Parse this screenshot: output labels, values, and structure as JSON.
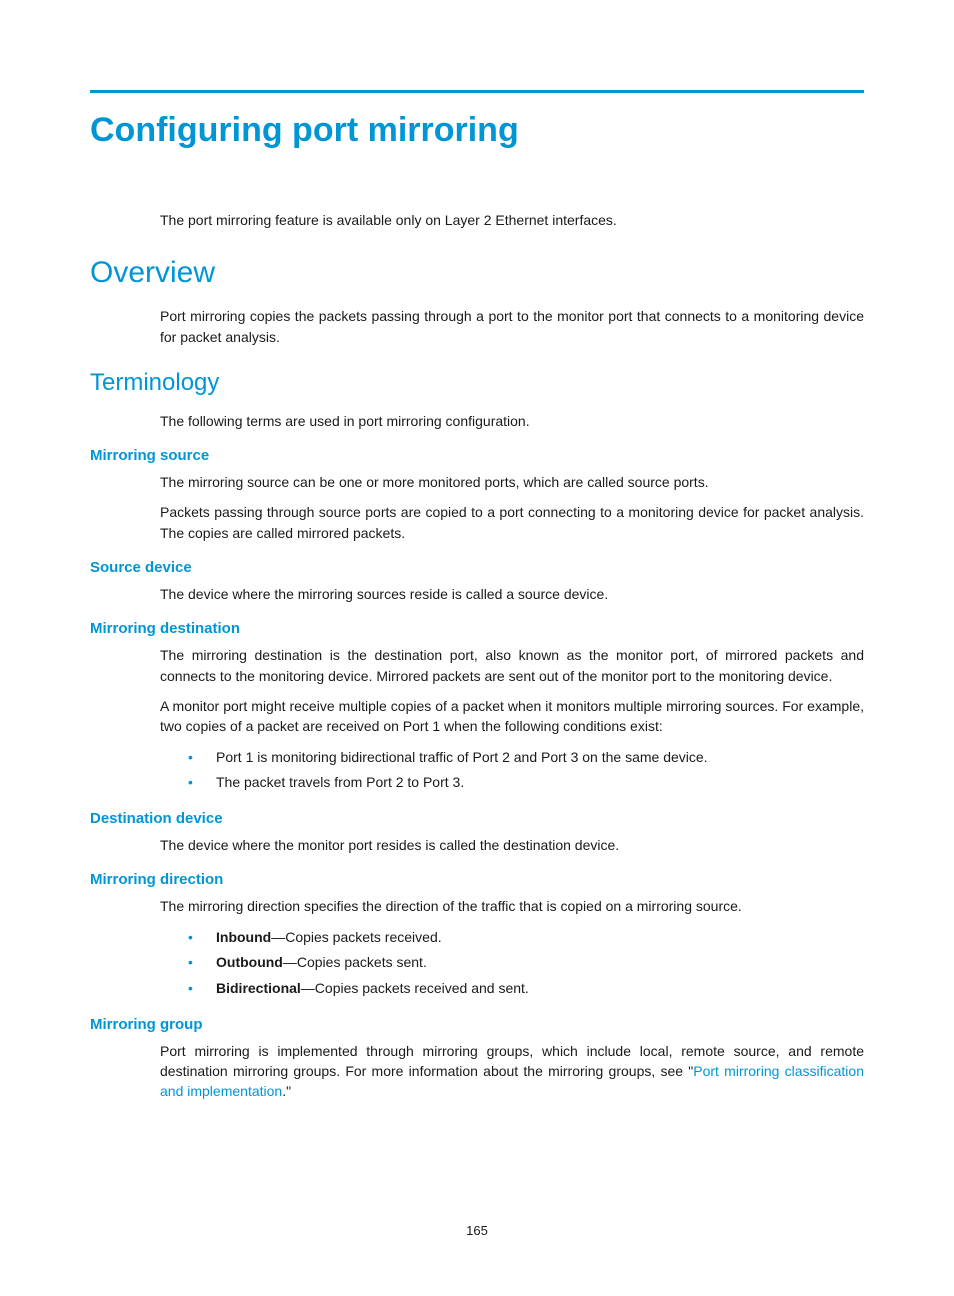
{
  "colors": {
    "accent": "#0096d6",
    "text": "#1a1a1a",
    "background": "#ffffff"
  },
  "page_number": "165",
  "title": "Configuring port mirroring",
  "intro_note": "The port mirroring feature is available only on Layer 2 Ethernet interfaces.",
  "overview": {
    "heading": "Overview",
    "text": "Port mirroring copies the packets passing through a port to the monitor port that connects to a monitoring device for packet analysis."
  },
  "terminology": {
    "heading": "Terminology",
    "intro": "The following terms are used in port mirroring configuration.",
    "sections": {
      "mirroring_source": {
        "heading": "Mirroring source",
        "p1": "The mirroring source can be one or more monitored ports, which are called source ports.",
        "p2": "Packets passing through source ports are copied to a port connecting to a monitoring device for packet analysis. The copies are called mirrored packets."
      },
      "source_device": {
        "heading": "Source device",
        "p1": "The device where the mirroring sources reside is called a source device."
      },
      "mirroring_destination": {
        "heading": "Mirroring destination",
        "p1": "The mirroring destination is the destination port, also known as the monitor port, of mirrored packets and connects to the monitoring device. Mirrored packets are sent out of the monitor port to the monitoring device.",
        "p2": "A monitor port might receive multiple copies of a packet when it monitors multiple mirroring sources. For example, two copies of a packet are received on Port 1 when the following conditions exist:",
        "bullet1": "Port 1 is monitoring bidirectional traffic of Port 2 and Port 3 on the same device.",
        "bullet2": "The packet travels from Port 2 to Port 3."
      },
      "destination_device": {
        "heading": "Destination device",
        "p1": "The device where the monitor port resides is called the destination device."
      },
      "mirroring_direction": {
        "heading": "Mirroring direction",
        "p1": "The mirroring direction specifies the direction of the traffic that is copied on a mirroring source.",
        "bullets": {
          "b1_bold": "Inbound",
          "b1_rest": "—Copies packets received.",
          "b2_bold": "Outbound",
          "b2_rest": "—Copies packets sent.",
          "b3_bold": "Bidirectional",
          "b3_rest": "—Copies packets received and sent."
        }
      },
      "mirroring_group": {
        "heading": "Mirroring group",
        "p1_pre": "Port mirroring is implemented through mirroring groups, which include local, remote source, and remote destination mirroring groups. For more information about the mirroring groups, see \"",
        "p1_link": "Port mirroring classification and implementation",
        "p1_post": ".\""
      }
    }
  }
}
